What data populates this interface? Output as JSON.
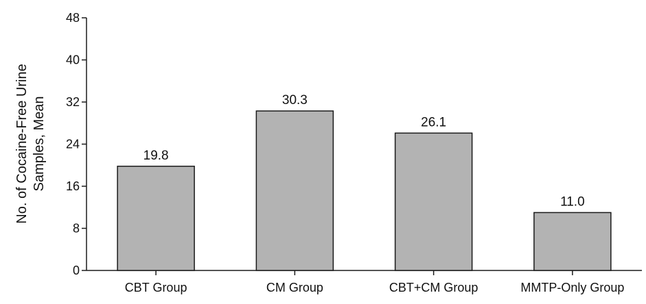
{
  "chart_data": {
    "type": "bar",
    "categories": [
      "CBT Group",
      "CM Group",
      "CBT+CM Group",
      "MMTP-Only Group"
    ],
    "values": [
      19.8,
      30.3,
      26.1,
      11.0
    ],
    "data_labels": [
      "19.8",
      "30.3",
      "26.1",
      "11.0"
    ],
    "title": "",
    "xlabel": "",
    "ylabel_lines": [
      "No. of Cocaine-Free Urine",
      "Samples, Mean"
    ],
    "ylim": [
      0,
      48
    ],
    "yticks": [
      0,
      8,
      16,
      24,
      32,
      40,
      48
    ],
    "grid": false,
    "legend": "none",
    "colors": {
      "bar_fill": "#b3b3b3",
      "bar_stroke": "#1a1a1a",
      "axis": "#1a1a1a",
      "text": "#111111"
    }
  }
}
